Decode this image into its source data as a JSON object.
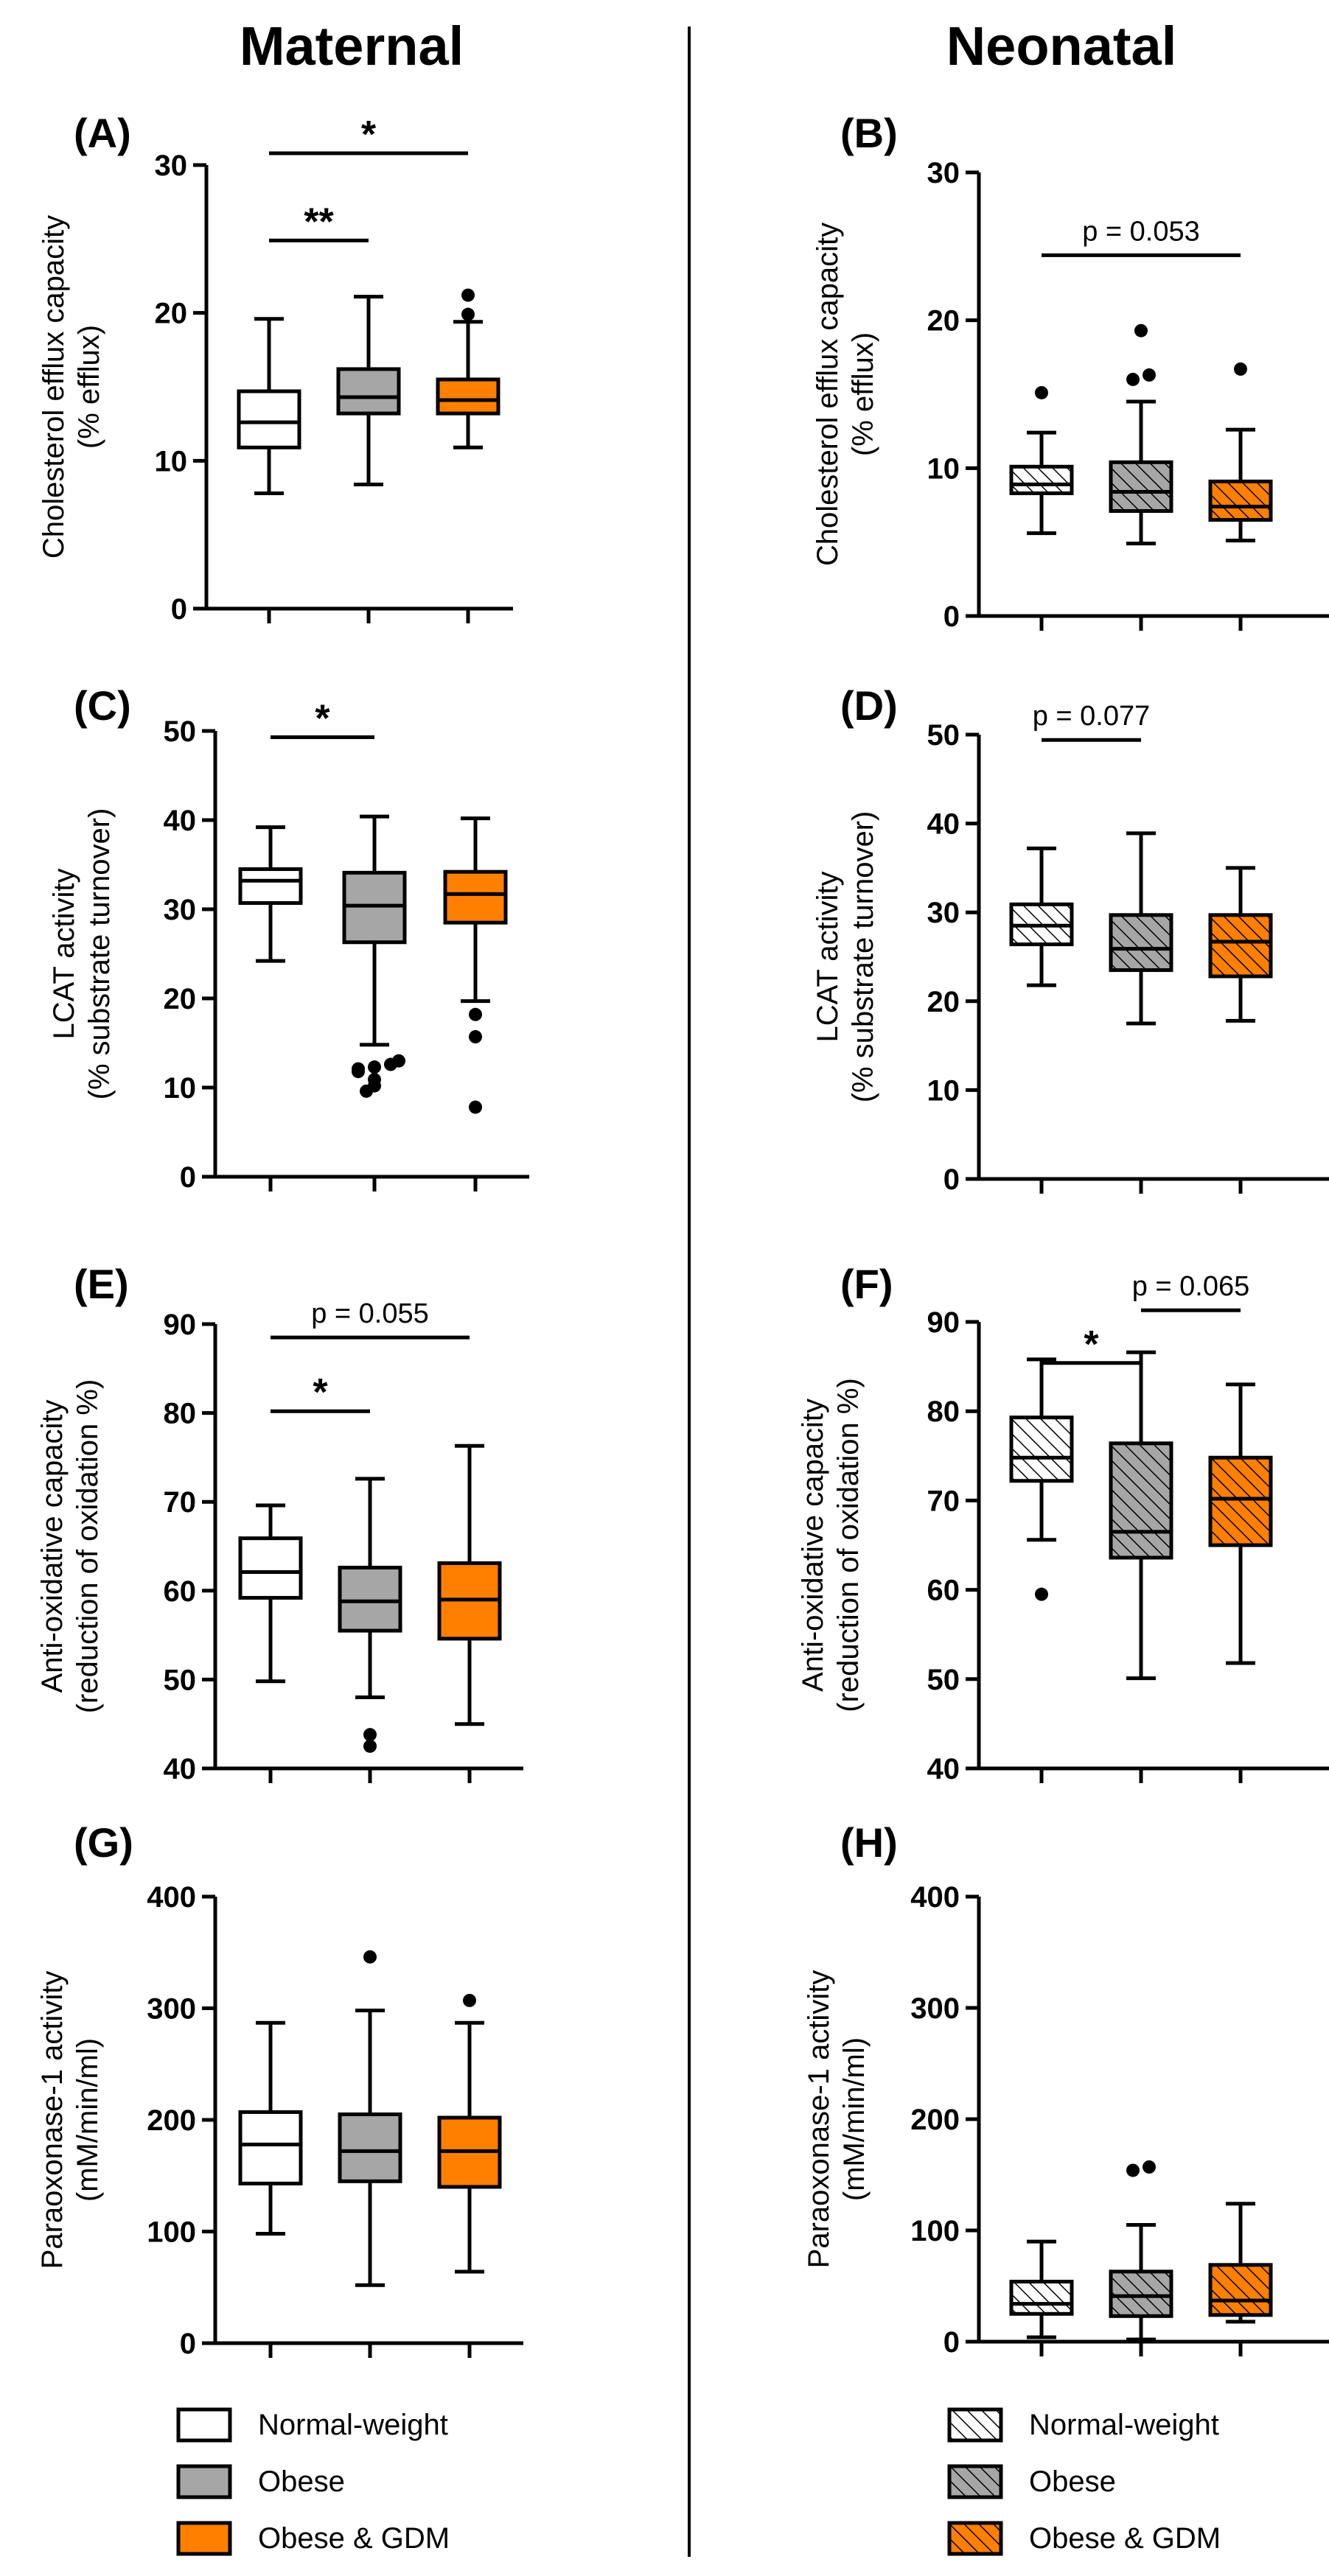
{
  "columns": {
    "left": "Maternal",
    "right": "Neonatal"
  },
  "colors": {
    "normal_weight": "#ffffff",
    "obese": "#a6a6a6",
    "obese_gdm": "#ff7f00",
    "line": "#000000"
  },
  "groups": [
    "Normal-weight",
    "Obese",
    "Obese & GDM"
  ],
  "legend_left": [
    {
      "label": "Normal-weight",
      "fill": "#ffffff",
      "hatch": false
    },
    {
      "label": "Obese",
      "fill": "#a6a6a6",
      "hatch": false
    },
    {
      "label": "Obese & GDM",
      "fill": "#ff7f00",
      "hatch": false
    }
  ],
  "legend_right": [
    {
      "label": "Normal-weight",
      "fill": "#ffffff",
      "hatch": true
    },
    {
      "label": "Obese",
      "fill": "#a6a6a6",
      "hatch": true
    },
    {
      "label": "Obese & GDM",
      "fill": "#ff7f00",
      "hatch": true
    }
  ],
  "chart_data": [
    {
      "panel": "(A)",
      "type": "boxplot",
      "column": "Maternal",
      "ylabel": [
        "Cholesterol efflux capacity",
        "(% efflux)"
      ],
      "ylim": [
        0,
        30
      ],
      "yticks": [
        0,
        10,
        20,
        30
      ],
      "hatched": false,
      "boxes": [
        {
          "group": "Normal-weight",
          "min": 7.8,
          "q1": 10.9,
          "median": 12.6,
          "q3": 14.7,
          "max": 19.6,
          "outliers": []
        },
        {
          "group": "Obese",
          "min": 8.4,
          "q1": 13.2,
          "median": 14.3,
          "q3": 16.2,
          "max": 21.1,
          "outliers": []
        },
        {
          "group": "Obese & GDM",
          "min": 10.9,
          "q1": 13.2,
          "median": 14.1,
          "q3": 15.5,
          "max": 19.4,
          "outliers": [
            19.9,
            21.2
          ]
        }
      ],
      "annotations": [
        {
          "from": 0,
          "to": 2,
          "y": 30.8,
          "label": "*",
          "kind": "star"
        },
        {
          "from": 0,
          "to": 1,
          "y": 24.9,
          "label": "**",
          "kind": "star"
        }
      ]
    },
    {
      "panel": "(B)",
      "type": "boxplot",
      "column": "Neonatal",
      "ylabel": [
        "Cholesterol efflux capacity",
        "(% efflux)"
      ],
      "ylim": [
        0,
        30
      ],
      "yticks": [
        0,
        10,
        20,
        30
      ],
      "hatched": true,
      "boxes": [
        {
          "group": "Normal-weight",
          "min": 5.6,
          "q1": 8.3,
          "median": 8.9,
          "q3": 10.1,
          "max": 12.4,
          "outliers": [
            15.1
          ]
        },
        {
          "group": "Obese",
          "min": 4.9,
          "q1": 7.1,
          "median": 8.4,
          "q3": 10.4,
          "max": 14.5,
          "outliers": [
            16.0,
            16.3,
            19.3
          ]
        },
        {
          "group": "Obese & GDM",
          "min": 5.1,
          "q1": 6.5,
          "median": 7.4,
          "q3": 9.1,
          "max": 12.6,
          "outliers": [
            16.7
          ]
        }
      ],
      "annotations": [
        {
          "from": 0,
          "to": 2,
          "y": 24.4,
          "label": "p = 0.053",
          "kind": "p"
        }
      ]
    },
    {
      "panel": "(C)",
      "type": "boxplot",
      "column": "Maternal",
      "ylabel": [
        "LCAT activity",
        "(% substrate turnover)"
      ],
      "ylim": [
        0,
        50
      ],
      "yticks": [
        0,
        10,
        20,
        30,
        40,
        50
      ],
      "hatched": false,
      "boxes": [
        {
          "group": "Normal-weight",
          "min": 24.2,
          "q1": 30.7,
          "median": 33.2,
          "q3": 34.5,
          "max": 39.2,
          "outliers": []
        },
        {
          "group": "Obese",
          "min": 14.8,
          "q1": 26.3,
          "median": 30.4,
          "q3": 34.1,
          "max": 40.4,
          "outliers": [
            9.6,
            10.2,
            10.9,
            11.8,
            12.1,
            12.3,
            12.6,
            13.0
          ]
        },
        {
          "group": "Obese & GDM",
          "min": 19.7,
          "q1": 28.5,
          "median": 31.7,
          "q3": 34.2,
          "max": 40.2,
          "outliers": [
            7.8,
            15.7,
            18.2
          ]
        }
      ],
      "annotations": [
        {
          "from": 0,
          "to": 1,
          "y": 49.3,
          "label": "*",
          "kind": "star"
        }
      ]
    },
    {
      "panel": "(D)",
      "type": "boxplot",
      "column": "Neonatal",
      "ylabel": [
        "LCAT activity",
        "(% substrate turnover)"
      ],
      "ylim": [
        0,
        50
      ],
      "yticks": [
        0,
        10,
        20,
        30,
        40,
        50
      ],
      "hatched": true,
      "boxes": [
        {
          "group": "Normal-weight",
          "min": 21.8,
          "q1": 26.4,
          "median": 28.5,
          "q3": 30.9,
          "max": 37.2,
          "outliers": []
        },
        {
          "group": "Obese",
          "min": 17.5,
          "q1": 23.5,
          "median": 25.9,
          "q3": 29.7,
          "max": 38.9,
          "outliers": []
        },
        {
          "group": "Obese & GDM",
          "min": 17.8,
          "q1": 22.8,
          "median": 26.7,
          "q3": 29.7,
          "max": 35.0,
          "outliers": []
        }
      ],
      "annotations": [
        {
          "from": 0,
          "to": 1,
          "y": 49.4,
          "label": "p = 0.077",
          "kind": "p"
        }
      ]
    },
    {
      "panel": "(E)",
      "type": "boxplot",
      "column": "Maternal",
      "ylabel": [
        "Anti-oxidative capacity",
        "(reduction of oxidation %)"
      ],
      "ylim": [
        40,
        90
      ],
      "yticks": [
        40,
        50,
        60,
        70,
        80,
        90
      ],
      "hatched": false,
      "boxes": [
        {
          "group": "Normal-weight",
          "min": 49.8,
          "q1": 59.2,
          "median": 62.1,
          "q3": 65.9,
          "max": 69.6,
          "outliers": []
        },
        {
          "group": "Obese",
          "min": 48.0,
          "q1": 55.5,
          "median": 58.8,
          "q3": 62.6,
          "max": 72.6,
          "outliers": [
            42.5,
            43.8
          ]
        },
        {
          "group": "Obese & GDM",
          "min": 45.0,
          "q1": 54.6,
          "median": 59.0,
          "q3": 63.1,
          "max": 76.3,
          "outliers": []
        }
      ],
      "annotations": [
        {
          "from": 0,
          "to": 2,
          "y": 88.5,
          "label": "p = 0.055",
          "kind": "p"
        },
        {
          "from": 0,
          "to": 1,
          "y": 80.2,
          "label": "*",
          "kind": "star"
        }
      ]
    },
    {
      "panel": "(F)",
      "type": "boxplot",
      "column": "Neonatal",
      "ylabel": [
        "Anti-oxidative capacity",
        "(reduction of oxidation %)"
      ],
      "ylim": [
        40,
        90
      ],
      "yticks": [
        40,
        50,
        60,
        70,
        80,
        90
      ],
      "hatched": true,
      "boxes": [
        {
          "group": "Normal-weight",
          "min": 65.6,
          "q1": 72.2,
          "median": 74.8,
          "q3": 79.3,
          "max": 85.8,
          "outliers": [
            59.5
          ]
        },
        {
          "group": "Obese",
          "min": 50.1,
          "q1": 63.6,
          "median": 66.5,
          "q3": 76.4,
          "max": 86.6,
          "outliers": []
        },
        {
          "group": "Obese & GDM",
          "min": 51.8,
          "q1": 65.0,
          "median": 70.2,
          "q3": 74.8,
          "max": 83.0,
          "outliers": []
        }
      ],
      "annotations": [
        {
          "from": 1,
          "to": 2,
          "y": 91.3,
          "label": "p = 0.065",
          "kind": "p"
        },
        {
          "from": 0,
          "to": 1,
          "y": 85.4,
          "label": "*",
          "kind": "star"
        }
      ]
    },
    {
      "panel": "(G)",
      "type": "boxplot",
      "column": "Maternal",
      "ylabel": [
        "Paraoxonase-1 activity",
        "(mM/min/ml)"
      ],
      "ylim": [
        0,
        400
      ],
      "yticks": [
        0,
        100,
        200,
        300,
        400
      ],
      "hatched": false,
      "boxes": [
        {
          "group": "Normal-weight",
          "min": 98,
          "q1": 143,
          "median": 178,
          "q3": 207,
          "max": 287,
          "outliers": []
        },
        {
          "group": "Obese",
          "min": 52,
          "q1": 145,
          "median": 172,
          "q3": 205,
          "max": 298,
          "outliers": [
            346
          ]
        },
        {
          "group": "Obese & GDM",
          "min": 64,
          "q1": 140,
          "median": 172,
          "q3": 202,
          "max": 287,
          "outliers": [
            307
          ]
        }
      ],
      "annotations": []
    },
    {
      "panel": "(H)",
      "type": "boxplot",
      "column": "Neonatal",
      "ylabel": [
        "Paraoxonase-1 activity",
        "(mM/min/ml)"
      ],
      "ylim": [
        0,
        400
      ],
      "yticks": [
        0,
        100,
        200,
        300,
        400
      ],
      "hatched": true,
      "boxes": [
        {
          "group": "Normal-weight",
          "min": 4,
          "q1": 25,
          "median": 34,
          "q3": 54,
          "max": 90,
          "outliers": []
        },
        {
          "group": "Obese",
          "min": 2,
          "q1": 23,
          "median": 41,
          "q3": 63,
          "max": 105,
          "outliers": [
            154,
            157
          ]
        },
        {
          "group": "Obese & GDM",
          "min": 18,
          "q1": 24,
          "median": 37,
          "q3": 69,
          "max": 124,
          "outliers": []
        }
      ],
      "annotations": []
    }
  ]
}
